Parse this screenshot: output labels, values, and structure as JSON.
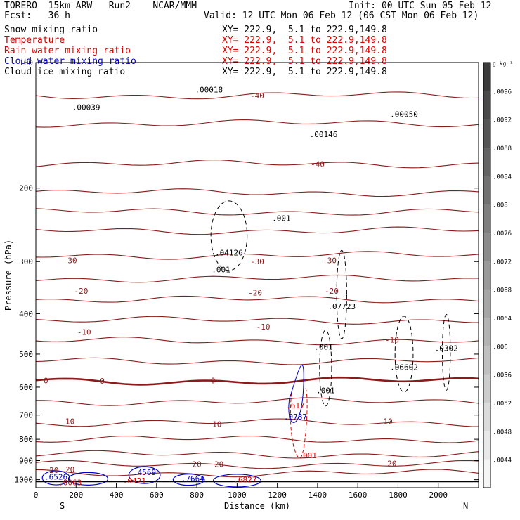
{
  "header": {
    "model": "TORERO  15km ARW   Run2    NCAR/MMM",
    "init": "Init: 00 UTC Sun 05 Feb 12",
    "fcst": "Fcst:   36 h",
    "valid": "Valid: 12 UTC Mon 06 Feb 12 (06 CST Mon 06 Feb 12)"
  },
  "fields": [
    {
      "name": "Snow mixing ratio",
      "xy": "XY= 222.9,  5.1 to 222.9,149.8",
      "color": "#000000"
    },
    {
      "name": "Temperature",
      "xy": "XY= 222.9,  5.1 to 222.9,149.8",
      "color": "#c80000"
    },
    {
      "name": "Rain water mixing ratio",
      "xy": "XY= 222.9,  5.1 to 222.9,149.8",
      "color": "#e00000"
    },
    {
      "name": "Cloud water mixing ratio",
      "xy": "XY= 222.9,  5.1 to 222.9,149.8",
      "color": "#0000c8"
    },
    {
      "name": "Cloud ice mixing ratio",
      "xy": "XY= 222.9,  5.1 to 222.9,149.8",
      "color": "#000000"
    }
  ],
  "chart_data": {
    "type": "contour",
    "xlabel": "Distance (km)",
    "ylabel": "Pressure (hPa)",
    "xlim": [
      0,
      2200
    ],
    "ylim": [
      1045,
      100
    ],
    "x_ticks": [
      0,
      200,
      400,
      600,
      800,
      1000,
      1200,
      1400,
      1600,
      1800,
      2000
    ],
    "y_ticks": [
      100,
      200,
      300,
      400,
      500,
      600,
      700,
      800,
      900,
      1000
    ],
    "x_end_labels": {
      "left": "S",
      "right": "N"
    },
    "temperature_isotherms": [
      {
        "label": "-40",
        "p": 120
      },
      {
        "label": "-40",
        "p": 140
      },
      {
        "label": "-40",
        "p": 175
      },
      {
        "label": "-30",
        "p": 205
      },
      {
        "label": "-30",
        "p": 228
      },
      {
        "label": "-30",
        "p": 253
      },
      {
        "label": "-20",
        "p": 290
      },
      {
        "label": "-20",
        "p": 330
      },
      {
        "label": "-20",
        "p": 370
      },
      {
        "label": "-10",
        "p": 415
      },
      {
        "label": "-10",
        "p": 465
      },
      {
        "label": "-10",
        "p": 520
      },
      {
        "label": "0",
        "p": 580,
        "bold": true
      },
      {
        "label": "10",
        "p": 650
      },
      {
        "label": "10",
        "p": 730
      },
      {
        "label": "10",
        "p": 800
      },
      {
        "label": "20",
        "p": 870
      },
      {
        "label": "20",
        "p": 920
      },
      {
        "label": "20",
        "p": 965
      }
    ],
    "temperature_labels": [
      {
        "text": "-40",
        "x": 1100,
        "p": 120
      },
      {
        "text": "-40",
        "x": 1400,
        "p": 175
      },
      {
        "text": "-30",
        "x": 170,
        "p": 298
      },
      {
        "text": "-30",
        "x": 1100,
        "p": 300
      },
      {
        "text": "-30",
        "x": 1460,
        "p": 298
      },
      {
        "text": "-20",
        "x": 225,
        "p": 353
      },
      {
        "text": "-20",
        "x": 1090,
        "p": 356
      },
      {
        "text": "-20",
        "x": 1470,
        "p": 353
      },
      {
        "text": "-10",
        "x": 240,
        "p": 443
      },
      {
        "text": "-10",
        "x": 1130,
        "p": 430
      },
      {
        "text": "-10",
        "x": 1770,
        "p": 462
      },
      {
        "text": "0",
        "x": 50,
        "p": 578
      },
      {
        "text": "0",
        "x": 330,
        "p": 580
      },
      {
        "text": "0",
        "x": 880,
        "p": 578
      },
      {
        "text": "10",
        "x": 170,
        "p": 725
      },
      {
        "text": "10",
        "x": 900,
        "p": 735
      },
      {
        "text": "10",
        "x": 1750,
        "p": 725
      },
      {
        "text": "20",
        "x": 90,
        "p": 948
      },
      {
        "text": "20",
        "x": 170,
        "p": 945
      },
      {
        "text": "20",
        "x": 800,
        "p": 917
      },
      {
        "text": "20",
        "x": 910,
        "p": 917
      },
      {
        "text": "20",
        "x": 1770,
        "p": 914
      }
    ],
    "snow_annotations": [
      {
        "text": ".00018",
        "x": 860,
        "p": 118
      },
      {
        "text": ".00146",
        "x": 1430,
        "p": 151
      },
      {
        "text": ".00050",
        "x": 1830,
        "p": 135
      },
      {
        "text": ".00039",
        "x": 250,
        "p": 130
      },
      {
        "text": ".04126",
        "x": 960,
        "p": 290
      },
      {
        "text": ".07723",
        "x": 1520,
        "p": 390
      },
      {
        "text": ".06602",
        "x": 1830,
        "p": 546
      },
      {
        "text": ".0302",
        "x": 2040,
        "p": 491
      },
      {
        "text": ".001",
        "x": 1220,
        "p": 240
      },
      {
        "text": ".001",
        "x": 920,
        "p": 318
      },
      {
        "text": ".001",
        "x": 1430,
        "p": 488
      },
      {
        "text": ".001",
        "x": 1440,
        "p": 620
      }
    ],
    "rain_annotations": [
      {
        "text": ".617",
        "x": 1290,
        "p": 674
      },
      {
        "text": ".001",
        "x": 1350,
        "p": 888
      },
      {
        "text": ".0421",
        "x": 490,
        "p": 1020
      },
      {
        "text": ".0063",
        "x": 170,
        "p": 1030
      },
      {
        "text": ".6827",
        "x": 1040,
        "p": 1015
      }
    ],
    "cloudwater_annotations": [
      {
        "text": ".0787",
        "x": 1290,
        "p": 718
      },
      {
        "text": ".6526",
        "x": 100,
        "p": 1000
      },
      {
        "text": ".4569",
        "x": 540,
        "p": 975
      },
      {
        "text": ".7664",
        "x": 780,
        "p": 1010
      }
    ],
    "colorbar": {
      "unit": "g kg⁻¹",
      "labels": [
        ".0096",
        ".0092",
        ".0088",
        ".0084",
        ".008",
        ".0076",
        ".0072",
        ".0068",
        ".0064",
        ".006",
        ".0056",
        ".0052",
        ".0048",
        ".0044"
      ]
    }
  }
}
